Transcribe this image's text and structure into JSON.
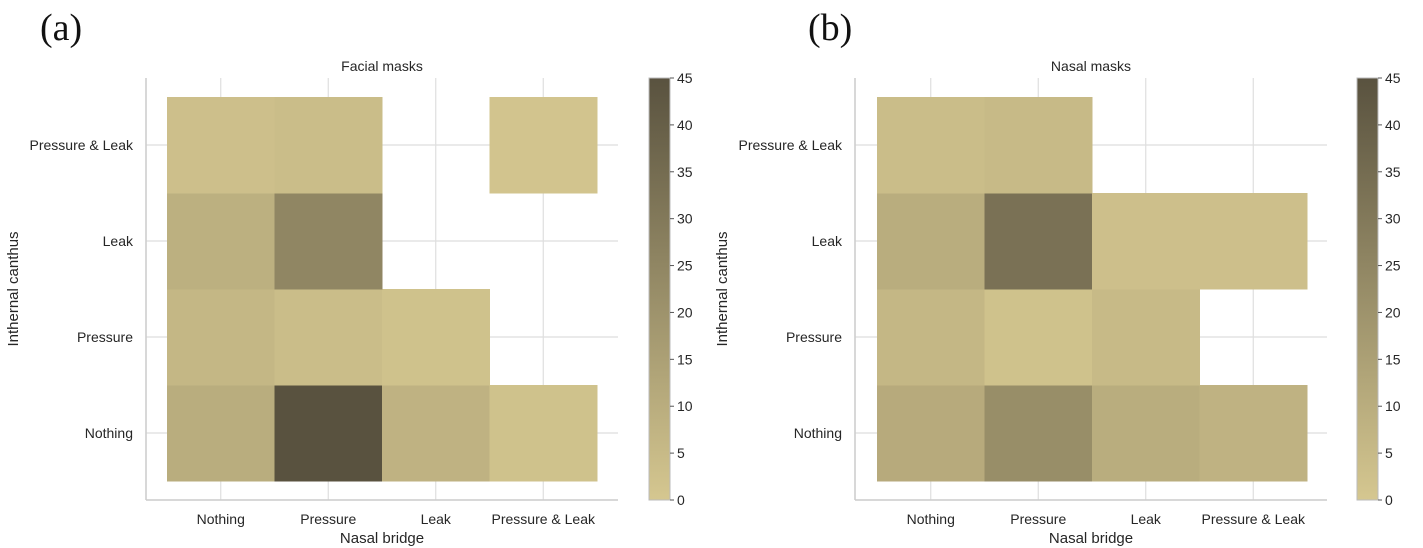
{
  "panels": [
    {
      "letter": "(a)"
    },
    {
      "letter": "(b)"
    }
  ],
  "chart_data": [
    {
      "type": "heatmap",
      "title": "Facial masks",
      "xlabel": "Nasal bridge",
      "ylabel": "Inthernal canthus",
      "x_categories": [
        "Nothing",
        "Pressure",
        "Leak",
        "Pressure & Leak"
      ],
      "y_categories": [
        "Nothing",
        "Pressure",
        "Leak",
        "Pressure & Leak"
      ],
      "values": [
        [
          10,
          45,
          8,
          2
        ],
        [
          6,
          4,
          2,
          0
        ],
        [
          9,
          25,
          0,
          0
        ],
        [
          3,
          4,
          0,
          1
        ]
      ],
      "colorbar": {
        "min": 0,
        "max": 45,
        "ticks": [
          0,
          5,
          10,
          15,
          20,
          25,
          30,
          35,
          40,
          45
        ]
      },
      "zero_cells_blank": true,
      "grid": true,
      "colors": {
        "low": "#d5c790",
        "high": "#59523f"
      }
    },
    {
      "type": "heatmap",
      "title": "Nasal masks",
      "xlabel": "Nasal bridge",
      "ylabel": "Inthernal canthus",
      "x_categories": [
        "Nothing",
        "Pressure",
        "Leak",
        "Pressure & Leak"
      ],
      "y_categories": [
        "Nothing",
        "Pressure",
        "Leak",
        "Pressure & Leak"
      ],
      "values": [
        [
          11,
          22,
          10,
          8
        ],
        [
          6,
          2,
          5,
          0
        ],
        [
          10,
          33,
          3,
          3
        ],
        [
          4,
          5,
          0,
          0
        ]
      ],
      "colorbar": {
        "min": 0,
        "max": 45,
        "ticks": [
          0,
          5,
          10,
          15,
          20,
          25,
          30,
          35,
          40,
          45
        ]
      },
      "zero_cells_blank": true,
      "grid": true,
      "colors": {
        "low": "#d5c790",
        "high": "#59523f"
      }
    }
  ]
}
